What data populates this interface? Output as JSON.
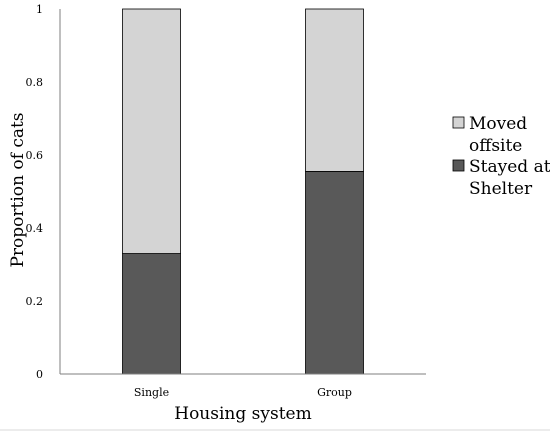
{
  "chart_data": {
    "type": "bar",
    "stacked": true,
    "categories": [
      "Single",
      "Group"
    ],
    "series": [
      {
        "name": "Stayed at Shelter",
        "values": [
          0.33,
          0.555
        ],
        "color": "#595959"
      },
      {
        "name": "Moved offsite",
        "values": [
          0.67,
          0.445
        ],
        "color": "#d4d4d4"
      }
    ],
    "xlabel": "Housing system",
    "ylabel": "Proportion of cats",
    "ylim": [
      0,
      1
    ],
    "yticks": [
      "0",
      "0.2",
      "0.4",
      "0.6",
      "0.8",
      "1"
    ],
    "grid": false,
    "legend": {
      "position": "right",
      "entries": [
        {
          "lines": [
            "Moved",
            "offsite"
          ],
          "color": "#d4d4d4"
        },
        {
          "lines": [
            "Stayed at",
            "Shelter"
          ],
          "color": "#595959"
        }
      ]
    }
  }
}
